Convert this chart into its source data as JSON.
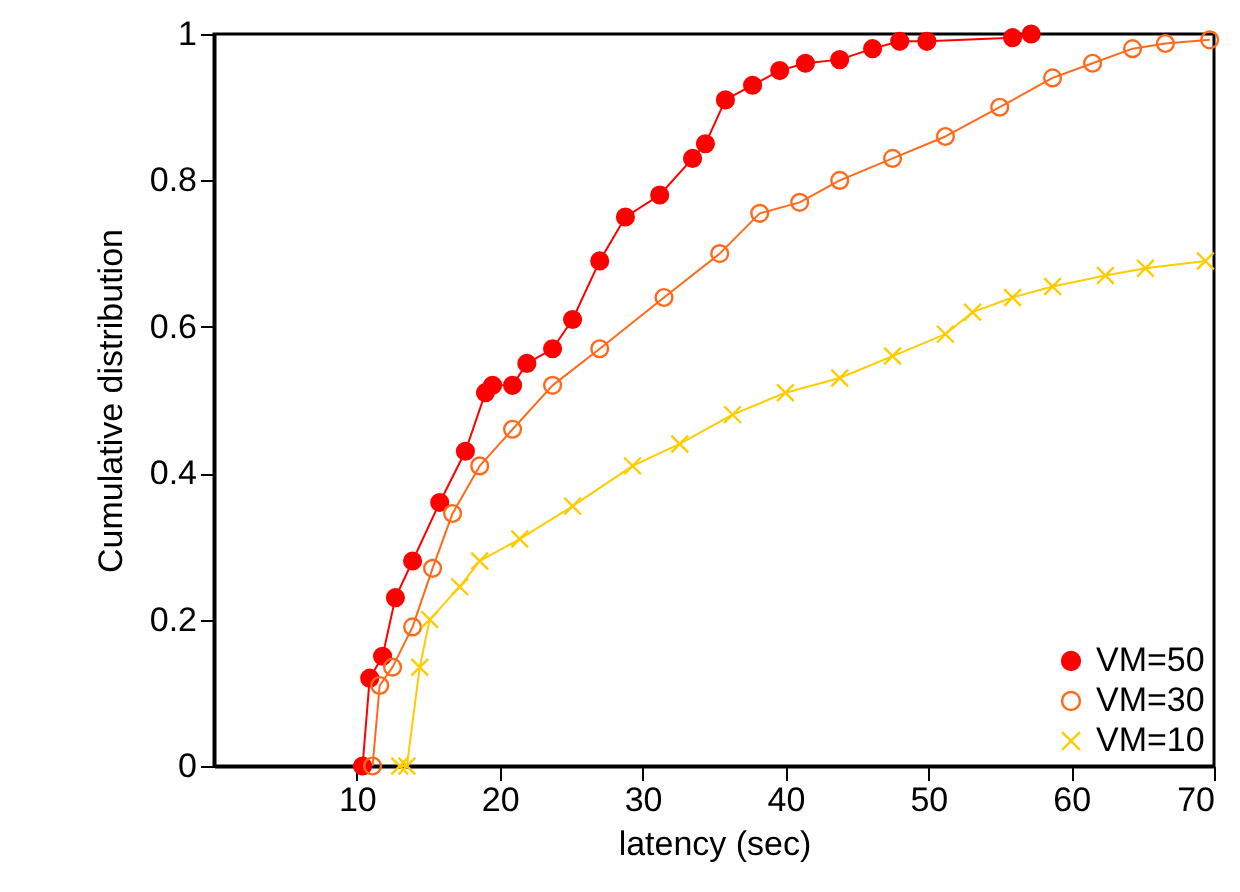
{
  "chart_data": {
    "type": "line",
    "xlabel": "latency (sec)",
    "ylabel": "Cumulative distribution",
    "xlim": [
      0,
      70
    ],
    "xticks": [
      10,
      20,
      30,
      40,
      50,
      60,
      70
    ],
    "ylim": [
      0,
      1
    ],
    "yticks": [
      0,
      0.2,
      0.4,
      0.6,
      0.8,
      1
    ],
    "grid": false,
    "legend": "bottom right",
    "series": [
      {
        "name": "VM=50",
        "color": "#ff0000",
        "marker": "circle",
        "x": [
          10.4,
          10.9,
          11.8,
          12.7,
          13.9,
          15.8,
          17.6,
          19.0,
          19.5,
          20.9,
          21.9,
          23.7,
          25.1,
          27.0,
          28.8,
          31.2,
          33.5,
          34.4,
          35.8,
          37.7,
          39.6,
          41.4,
          43.8,
          46.1,
          48.0,
          49.9,
          55.9,
          57.2
        ],
        "values": [
          0,
          0.12,
          0.15,
          0.23,
          0.28,
          0.36,
          0.43,
          0.51,
          0.52,
          0.52,
          0.55,
          0.57,
          0.61,
          0.69,
          0.75,
          0.78,
          0.83,
          0.85,
          0.91,
          0.93,
          0.95,
          0.96,
          0.965,
          0.98,
          0.99,
          0.99,
          0.995,
          1
        ]
      },
      {
        "name": "VM=30",
        "color": "#ff6a1a",
        "marker": "circle_open",
        "x": [
          11.1,
          11.6,
          12.5,
          13.9,
          15.3,
          16.7,
          18.6,
          20.9,
          23.7,
          27.0,
          31.5,
          35.4,
          38.2,
          41.0,
          43.8,
          47.5,
          51.2,
          55.0,
          58.7,
          61.5,
          64.3,
          66.6,
          69.7
        ],
        "values": [
          0,
          0.11,
          0.135,
          0.19,
          0.27,
          0.345,
          0.41,
          0.46,
          0.52,
          0.57,
          0.64,
          0.7,
          0.755,
          0.77,
          0.8,
          0.83,
          0.86,
          0.9,
          0.94,
          0.96,
          0.98,
          0.987,
          0.992
        ]
      },
      {
        "name": "VM=10",
        "color": "#ffcc00",
        "marker": "cross",
        "x": [
          13.0,
          13.5,
          14.4,
          15.1,
          17.2,
          18.6,
          21.4,
          25.1,
          29.3,
          32.6,
          36.3,
          40.0,
          43.8,
          47.5,
          51.2,
          53.1,
          55.9,
          58.7,
          62.4,
          65.2,
          69.4
        ],
        "values": [
          0,
          0,
          0.135,
          0.2,
          0.245,
          0.28,
          0.31,
          0.355,
          0.41,
          0.44,
          0.48,
          0.51,
          0.53,
          0.56,
          0.59,
          0.62,
          0.64,
          0.655,
          0.67,
          0.68,
          0.69
        ]
      }
    ]
  }
}
